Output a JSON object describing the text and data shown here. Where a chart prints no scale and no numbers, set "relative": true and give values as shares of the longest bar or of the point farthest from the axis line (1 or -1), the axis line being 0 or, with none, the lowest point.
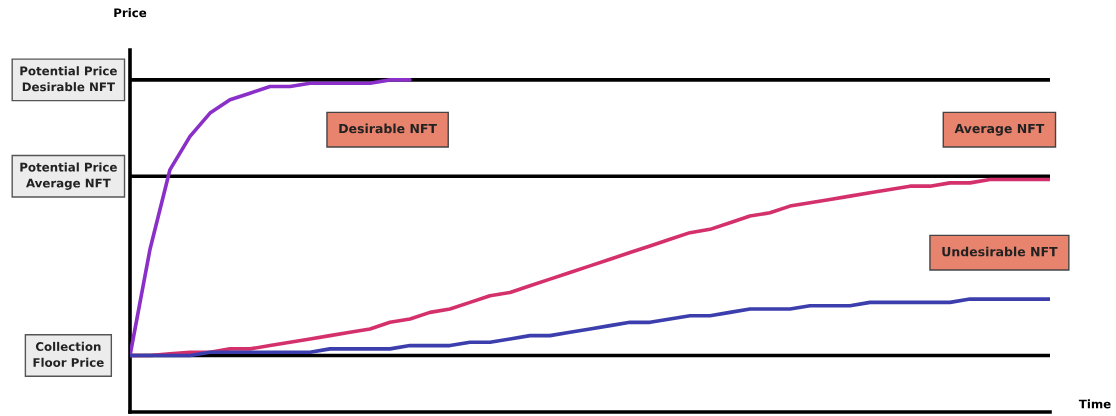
{
  "chart_data": {
    "type": "line",
    "relative": true,
    "xlabel": "Time",
    "legend": false,
    "annotations": [
      "Desirable NFT",
      "Average NFT",
      "Undesirable NFT",
      "Price"
    ],
    "categories": [
      null,
      null,
      null,
      null,
      null,
      null,
      null,
      null,
      null,
      null,
      null,
      null,
      null,
      null,
      null,
      null,
      null,
      null,
      null,
      null,
      null,
      null,
      null,
      null,
      null,
      null,
      null,
      null,
      null,
      null,
      null,
      null,
      null,
      null,
      null,
      null,
      null,
      null,
      null,
      null,
      null,
      null,
      null,
      null,
      null,
      null,
      null
    ],
    "series": [
      {
        "color": "#8b2fc9",
        "values": [
          0.17,
          0.49,
          0.73,
          0.83,
          0.9,
          0.94,
          0.96,
          0.98,
          0.98,
          0.99,
          0.99,
          0.99,
          0.99,
          1.0,
          1.0,
          null,
          null,
          null,
          null,
          null,
          null,
          null,
          null,
          null,
          null,
          null,
          null,
          null,
          null,
          null,
          null,
          null,
          null,
          null,
          null,
          null,
          null,
          null,
          null,
          null,
          null,
          null,
          null,
          null,
          null,
          null,
          null
        ]
      },
      {
        "color": "#d4306c",
        "values": [
          0.17,
          0.17,
          0.175,
          0.18,
          0.18,
          0.19,
          0.19,
          0.2,
          0.21,
          0.22,
          0.23,
          0.24,
          0.25,
          0.27,
          0.28,
          0.3,
          0.31,
          0.33,
          0.35,
          0.36,
          0.38,
          0.4,
          0.42,
          0.44,
          0.46,
          0.48,
          0.5,
          0.52,
          0.54,
          0.55,
          0.57,
          0.59,
          0.6,
          0.62,
          0.63,
          0.64,
          0.65,
          0.66,
          0.67,
          0.68,
          0.68,
          0.69,
          0.69,
          0.7,
          0.7,
          0.7,
          0.7
        ]
      },
      {
        "color": "#3b3eac",
        "values": [
          0.17,
          0.17,
          0.17,
          0.17,
          0.18,
          0.18,
          0.18,
          0.18,
          0.18,
          0.18,
          0.19,
          0.19,
          0.19,
          0.19,
          0.2,
          0.2,
          0.2,
          0.21,
          0.21,
          0.22,
          0.23,
          0.23,
          0.24,
          0.25,
          0.26,
          0.27,
          0.27,
          0.28,
          0.29,
          0.29,
          0.3,
          0.31,
          0.31,
          0.31,
          0.32,
          0.32,
          0.32,
          0.33,
          0.33,
          0.33,
          0.33,
          0.33,
          0.34,
          0.34,
          0.34,
          0.34,
          0.34
        ]
      }
    ],
    "ref_lines": [
      {
        "axis": "y",
        "value": 0.17,
        "label": "Collection\nFloor Price",
        "color": "#000000"
      },
      {
        "axis": "y",
        "value": 0.71,
        "label": "Potential Price\nAverage NFT",
        "color": "#000000"
      },
      {
        "axis": "y",
        "value": 1.0,
        "label": "Potential Price\nDesirable NFT",
        "color": "#000000"
      }
    ]
  }
}
